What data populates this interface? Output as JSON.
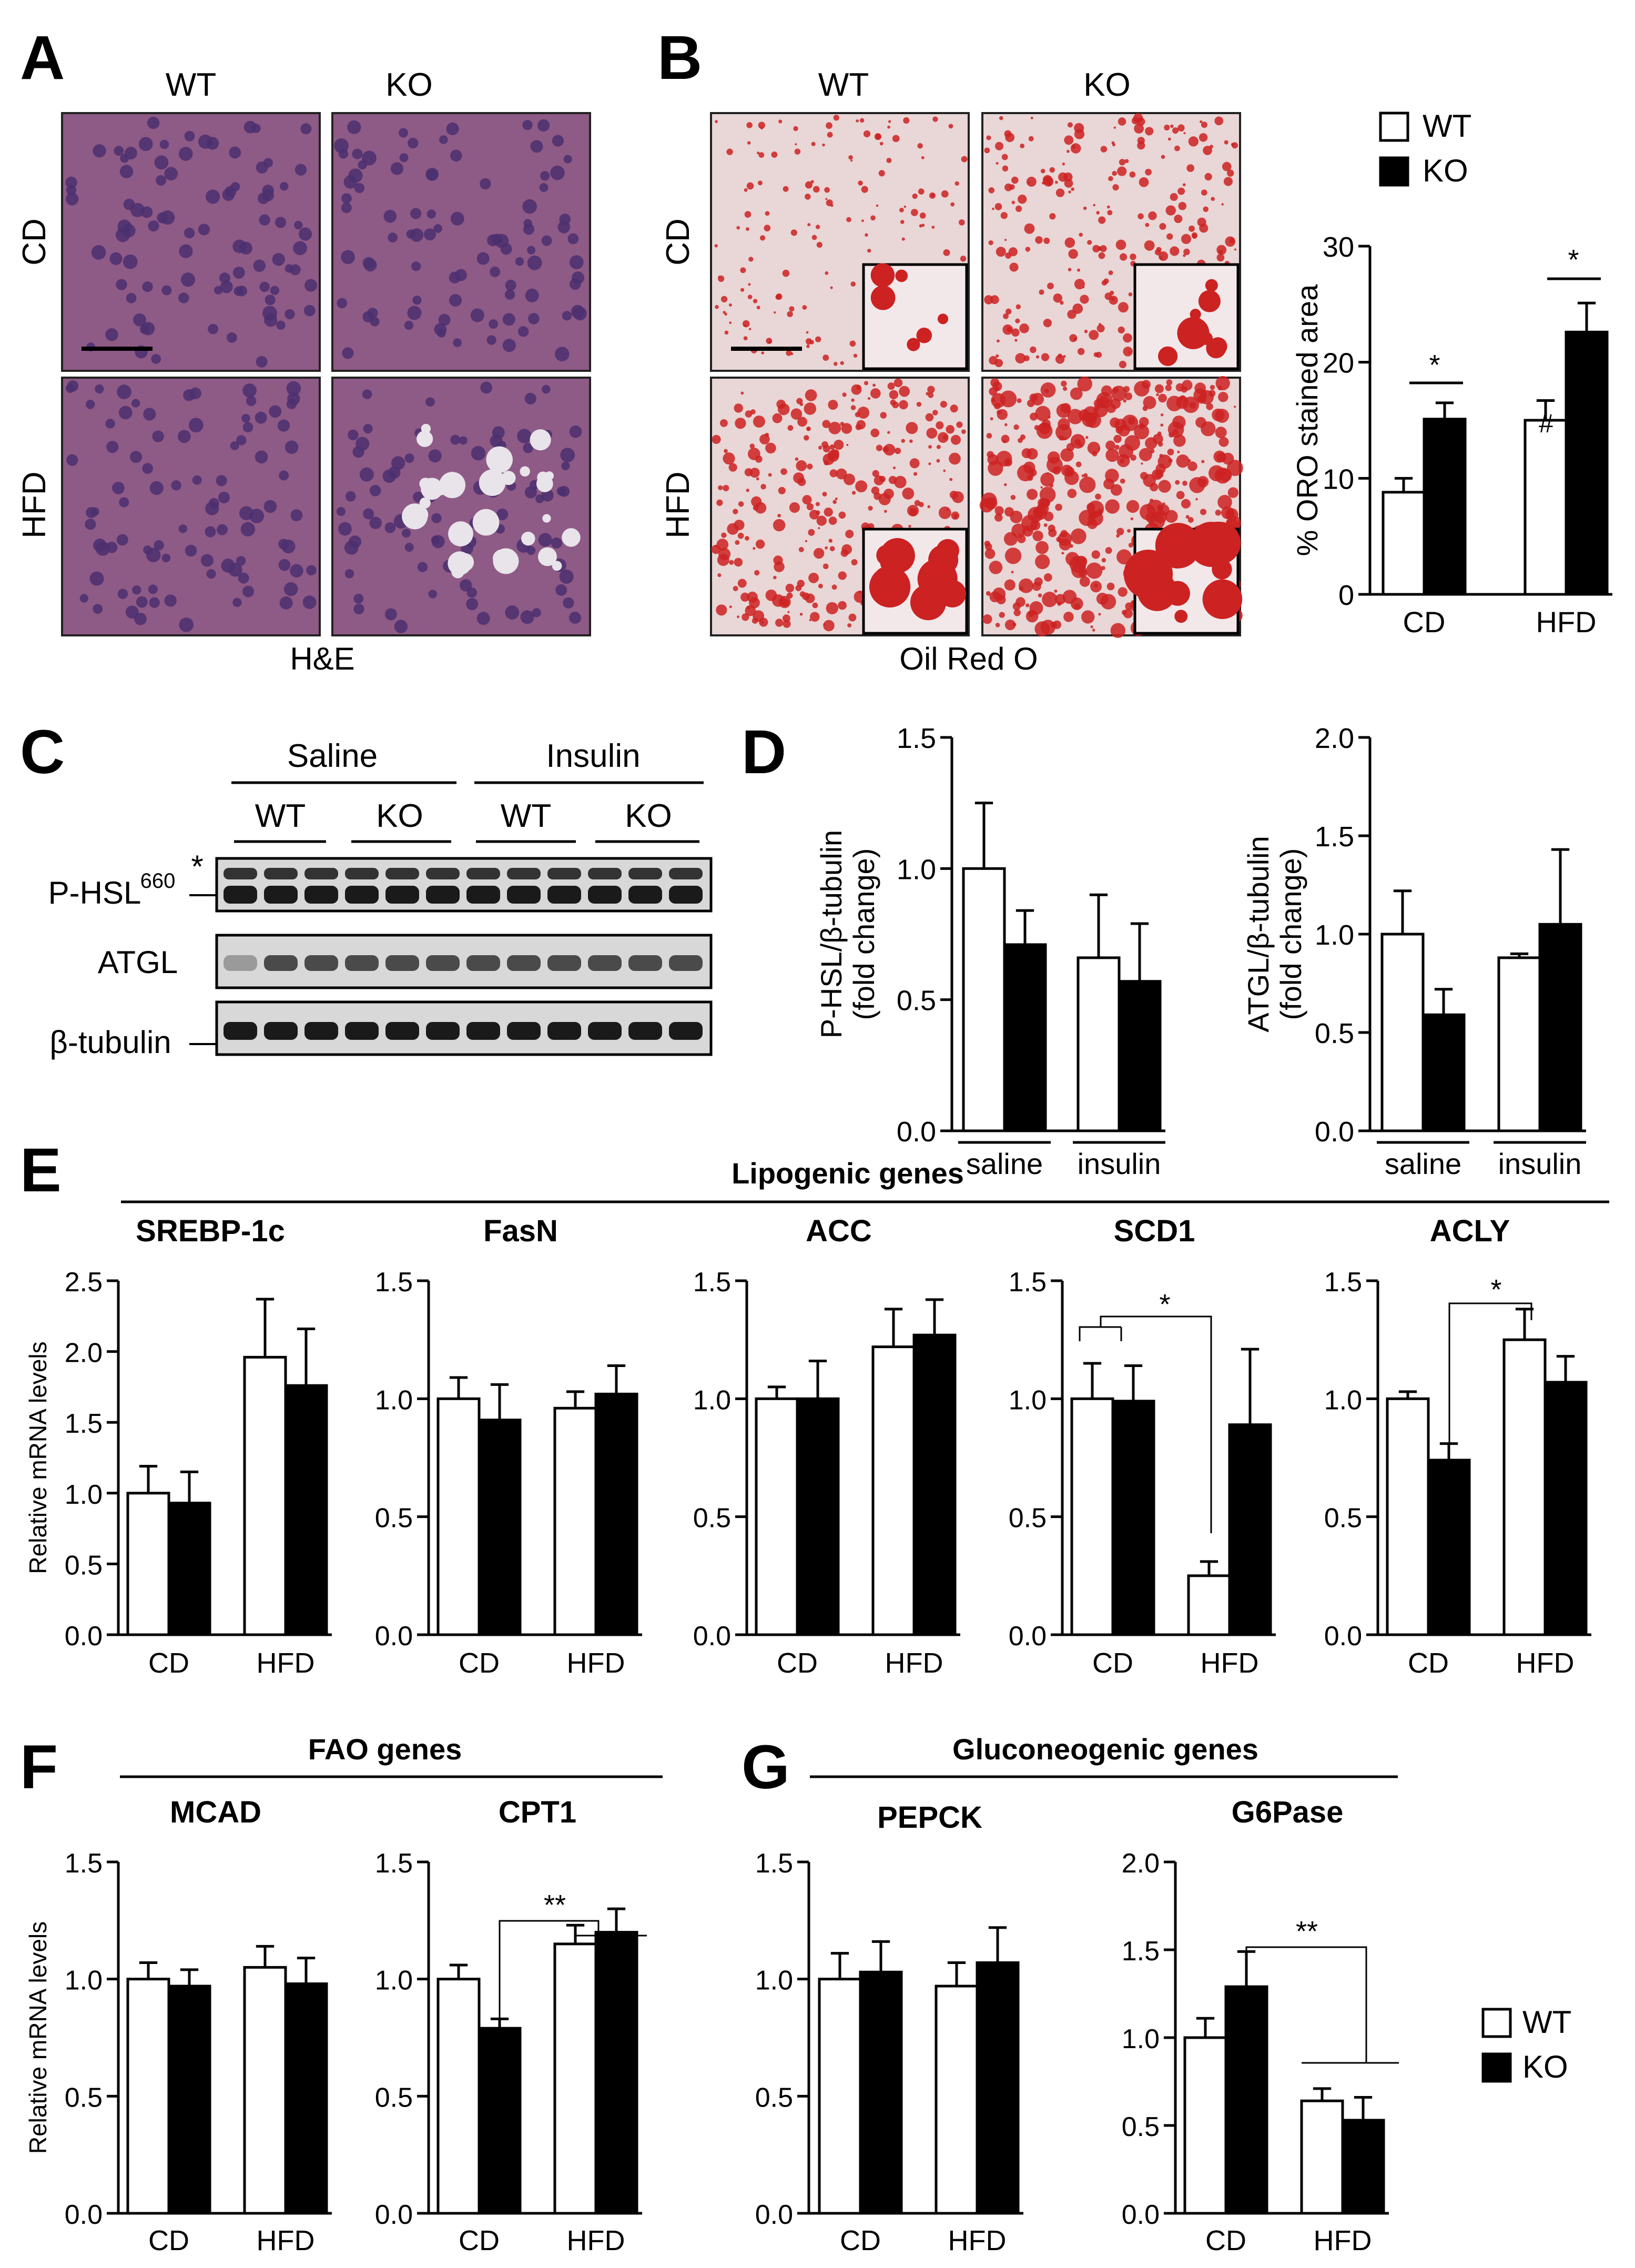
{
  "panel_letters": [
    "A",
    "B",
    "C",
    "D",
    "E",
    "F",
    "G"
  ],
  "panelA": {
    "col_labels": [
      "WT",
      "KO"
    ],
    "row_labels": [
      "CD",
      "HFD"
    ],
    "caption": "H&E"
  },
  "panelB": {
    "col_labels": [
      "WT",
      "KO"
    ],
    "row_labels": [
      "CD",
      "HFD"
    ],
    "caption": "Oil Red O"
  },
  "panelC": {
    "group_labels": [
      "Saline",
      "Insulin"
    ],
    "genotype_labels": [
      "WT",
      "KO",
      "WT",
      "KO"
    ],
    "blot_labels": {
      "phsl": "P-HSL",
      "phsl_sup": "660",
      "atgl": "ATGL",
      "tubulin": "β-tubulin"
    },
    "asterisk": "*"
  },
  "legend": {
    "wt": "WT",
    "ko": "KO"
  },
  "colors": {
    "wt_fill": "#ffffff",
    "ko_fill": "#000000",
    "stroke": "#000000",
    "he_base": "#8e5a86",
    "he_cell": "#4b2f6e",
    "oro_base": "#e9d6d6",
    "oro_drop": "#cc2222"
  },
  "headers": {
    "lipogenic": "Lipogenic genes",
    "fao": "FAO genes",
    "gluconeogenic": "Gluconeogenic genes"
  },
  "chart_data": [
    {
      "id": "B",
      "type": "bar",
      "title": "",
      "ylabel": "% ORO stained area",
      "categories": [
        "CD",
        "HFD"
      ],
      "ylim": [
        0,
        30
      ],
      "yticks": [
        "0",
        "10",
        "20",
        "30"
      ],
      "series": [
        {
          "name": "WT",
          "values": [
            8.8,
            15.0
          ],
          "errors": [
            1.2,
            1.7
          ]
        },
        {
          "name": "KO",
          "values": [
            15.1,
            22.6
          ],
          "errors": [
            1.4,
            2.5
          ]
        }
      ],
      "annotations": [
        "*",
        "*",
        "#"
      ]
    },
    {
      "id": "D1",
      "type": "bar",
      "title": "",
      "ylabel": "P-HSL/β-tubulin (fold change)",
      "categories": [
        "saline",
        "insulin"
      ],
      "ylim": [
        0,
        1.5
      ],
      "yticks": [
        "0.0",
        "0.5",
        "1.0",
        "1.5"
      ],
      "series": [
        {
          "name": "WT",
          "values": [
            1.0,
            0.66
          ],
          "errors": [
            0.25,
            0.24
          ]
        },
        {
          "name": "KO",
          "values": [
            0.71,
            0.57
          ],
          "errors": [
            0.13,
            0.22
          ]
        }
      ]
    },
    {
      "id": "D2",
      "type": "bar",
      "title": "",
      "ylabel": "ATGL/β-tubulin (fold change)",
      "categories": [
        "saline",
        "insulin"
      ],
      "ylim": [
        0,
        2.0
      ],
      "yticks": [
        "0.0",
        "0.5",
        "1.0",
        "1.5",
        "2.0"
      ],
      "series": [
        {
          "name": "WT",
          "values": [
            1.0,
            0.88
          ],
          "errors": [
            0.22,
            0.02
          ]
        },
        {
          "name": "KO",
          "values": [
            0.59,
            1.05
          ],
          "errors": [
            0.13,
            0.38
          ]
        }
      ]
    },
    {
      "id": "E1",
      "type": "bar",
      "title": "SREBP-1c",
      "ylabel": "Relative mRNA levels",
      "categories": [
        "CD",
        "HFD"
      ],
      "ylim": [
        0,
        2.5
      ],
      "yticks": [
        "0.0",
        "0.5",
        "1.0",
        "1.5",
        "2.0",
        "2.5"
      ],
      "series": [
        {
          "name": "WT",
          "values": [
            1.0,
            1.96
          ],
          "errors": [
            0.19,
            0.41
          ]
        },
        {
          "name": "KO",
          "values": [
            0.93,
            1.76
          ],
          "errors": [
            0.22,
            0.4
          ]
        }
      ]
    },
    {
      "id": "E2",
      "type": "bar",
      "title": "FasN",
      "ylabel": "",
      "categories": [
        "CD",
        "HFD"
      ],
      "ylim": [
        0,
        1.5
      ],
      "yticks": [
        "0.0",
        "0.5",
        "1.0",
        "1.5"
      ],
      "series": [
        {
          "name": "WT",
          "values": [
            1.0,
            0.96
          ],
          "errors": [
            0.09,
            0.07
          ]
        },
        {
          "name": "KO",
          "values": [
            0.91,
            1.02
          ],
          "errors": [
            0.15,
            0.12
          ]
        }
      ]
    },
    {
      "id": "E3",
      "type": "bar",
      "title": "ACC",
      "ylabel": "",
      "categories": [
        "CD",
        "HFD"
      ],
      "ylim": [
        0,
        1.5
      ],
      "yticks": [
        "0.0",
        "0.5",
        "1.0",
        "1.5"
      ],
      "series": [
        {
          "name": "WT",
          "values": [
            1.0,
            1.22
          ],
          "errors": [
            0.05,
            0.16
          ]
        },
        {
          "name": "KO",
          "values": [
            1.0,
            1.27
          ],
          "errors": [
            0.16,
            0.15
          ]
        }
      ]
    },
    {
      "id": "E4",
      "type": "bar",
      "title": "SCD1",
      "ylabel": "",
      "categories": [
        "CD",
        "HFD"
      ],
      "ylim": [
        0,
        1.5
      ],
      "yticks": [
        "0.0",
        "0.5",
        "1.0",
        "1.5"
      ],
      "series": [
        {
          "name": "WT",
          "values": [
            1.0,
            0.25
          ],
          "errors": [
            0.15,
            0.06
          ]
        },
        {
          "name": "KO",
          "values": [
            0.99,
            0.89
          ],
          "errors": [
            0.15,
            0.32
          ]
        }
      ],
      "annotations": [
        "*"
      ]
    },
    {
      "id": "E5",
      "type": "bar",
      "title": "ACLY",
      "ylabel": "",
      "categories": [
        "CD",
        "HFD"
      ],
      "ylim": [
        0,
        1.5
      ],
      "yticks": [
        "0.0",
        "0.5",
        "1.0",
        "1.5"
      ],
      "series": [
        {
          "name": "WT",
          "values": [
            1.0,
            1.25
          ],
          "errors": [
            0.03,
            0.13
          ]
        },
        {
          "name": "KO",
          "values": [
            0.74,
            1.07
          ],
          "errors": [
            0.07,
            0.11
          ]
        }
      ],
      "annotations": [
        "*"
      ]
    },
    {
      "id": "F1",
      "type": "bar",
      "title": "MCAD",
      "ylabel": "Relative mRNA levels",
      "categories": [
        "CD",
        "HFD"
      ],
      "ylim": [
        0,
        1.5
      ],
      "yticks": [
        "0.0",
        "0.5",
        "1.0",
        "1.5"
      ],
      "series": [
        {
          "name": "WT",
          "values": [
            1.0,
            1.05
          ],
          "errors": [
            0.07,
            0.09
          ]
        },
        {
          "name": "KO",
          "values": [
            0.97,
            0.98
          ],
          "errors": [
            0.07,
            0.11
          ]
        }
      ]
    },
    {
      "id": "F2",
      "type": "bar",
      "title": "CPT1",
      "ylabel": "",
      "categories": [
        "CD",
        "HFD"
      ],
      "ylim": [
        0,
        1.5
      ],
      "yticks": [
        "0.0",
        "0.5",
        "1.0",
        "1.5"
      ],
      "series": [
        {
          "name": "WT",
          "values": [
            1.0,
            1.15
          ],
          "errors": [
            0.06,
            0.08
          ]
        },
        {
          "name": "KO",
          "values": [
            0.79,
            1.2
          ],
          "errors": [
            0.04,
            0.1
          ]
        }
      ],
      "annotations": [
        "**"
      ]
    },
    {
      "id": "G1",
      "type": "bar",
      "title": "PEPCK",
      "ylabel": "",
      "categories": [
        "CD",
        "HFD"
      ],
      "ylim": [
        0,
        1.5
      ],
      "yticks": [
        "0.0",
        "0.5",
        "1.0",
        "1.5"
      ],
      "series": [
        {
          "name": "WT",
          "values": [
            1.0,
            0.97
          ],
          "errors": [
            0.11,
            0.1
          ]
        },
        {
          "name": "KO",
          "values": [
            1.03,
            1.07
          ],
          "errors": [
            0.13,
            0.15
          ]
        }
      ]
    },
    {
      "id": "G2",
      "type": "bar",
      "title": "G6Pase",
      "ylabel": "",
      "categories": [
        "CD",
        "HFD"
      ],
      "ylim": [
        0,
        2.0
      ],
      "yticks": [
        "0.0",
        "0.5",
        "1.0",
        "1.5",
        "2.0"
      ],
      "series": [
        {
          "name": "WT",
          "values": [
            1.0,
            0.64
          ],
          "errors": [
            0.11,
            0.07
          ]
        },
        {
          "name": "KO",
          "values": [
            1.29,
            0.53
          ],
          "errors": [
            0.2,
            0.13
          ]
        }
      ],
      "annotations": [
        "**"
      ]
    }
  ]
}
